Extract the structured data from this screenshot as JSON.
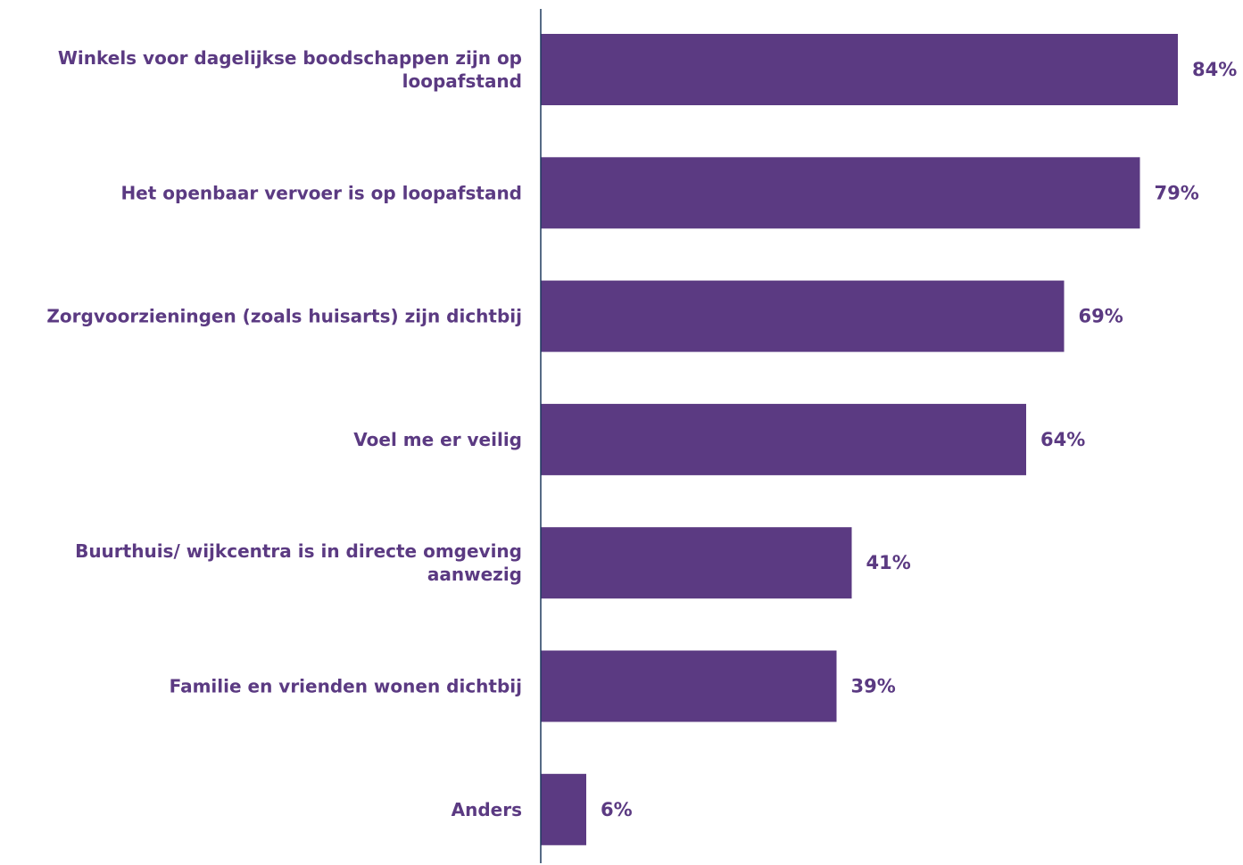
{
  "chart_data": {
    "type": "bar",
    "orientation": "horizontal",
    "categories": [
      [
        "Winkels voor dagelijkse boodschappen zijn op",
        "loopafstand"
      ],
      [
        "Het openbaar vervoer is op loopafstand"
      ],
      [
        "Zorgvoorzieningen (zoals huisarts) zijn dichtbij"
      ],
      [
        "Voel me er veilig"
      ],
      [
        "Buurthuis/ wijkcentra is in directe omgeving",
        "aanwezig"
      ],
      [
        "Familie en vrienden wonen dichtbij"
      ],
      [
        "Anders"
      ]
    ],
    "values": [
      84,
      79,
      69,
      64,
      41,
      39,
      6
    ],
    "value_labels": [
      "84%",
      "79%",
      "69%",
      "64%",
      "41%",
      "39%",
      "6%"
    ],
    "unit": "%",
    "xlim": [
      0,
      100
    ],
    "grid": false,
    "legend": "none",
    "bar_color": "#5b3a82",
    "text_color": "#5b3a82",
    "axis_color": "#1f3a5f"
  }
}
